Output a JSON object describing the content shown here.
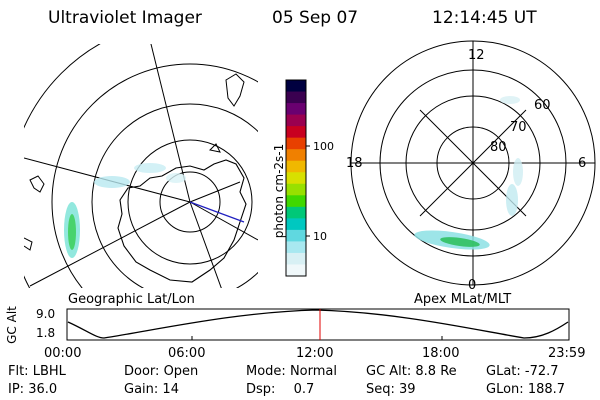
{
  "header": {
    "title": "Ultraviolet Imager",
    "date": "05 Sep 07",
    "time": "12:14:45 UT"
  },
  "geo_map": {
    "label": "Geographic Lat/Lon"
  },
  "apex_map": {
    "label": "Apex MLat/MLT",
    "mlt_labels": [
      "12",
      "18",
      "6",
      "0"
    ],
    "lat_labels": [
      "60",
      "70",
      "80"
    ]
  },
  "colorbar": {
    "unit_label": "photon cm-2s-1",
    "ticks": [
      "100",
      "10"
    ],
    "colors": [
      "#000040",
      "#3a0050",
      "#6a0070",
      "#9a0050",
      "#c80020",
      "#e84000",
      "#f08000",
      "#f0b800",
      "#d8e000",
      "#98e000",
      "#40d800",
      "#00c878",
      "#00c8c0",
      "#60d8e0",
      "#a8e8f0",
      "#d8f0f4",
      "#f0f8fa"
    ]
  },
  "altitude_panel": {
    "ylabel": "GC Alt",
    "ymax_label": "9.0",
    "ymin_label": "1.8",
    "xticks": [
      "00:00",
      "06:00",
      "12:00",
      "18:00",
      "23:59"
    ],
    "current_marker_color": "#e00000"
  },
  "info": {
    "flt_label": "Flt:",
    "flt_value": "LBHL",
    "ip_label": "IP:",
    "ip_value": "36.0",
    "door_label": "Door:",
    "door_value": "Open",
    "gain_label": "Gain:",
    "gain_value": "14",
    "mode_label": "Mode:",
    "mode_value": "Normal",
    "dsp_label": "Dsp:",
    "dsp_value": "0.7",
    "gcalt_label": "GC Alt:",
    "gcalt_value": "8.8 Re",
    "seq_label": "Seq:",
    "seq_value": "39",
    "glat_label": "GLat:",
    "glat_value": "-72.7",
    "glon_label": "GLon:",
    "glon_value": "188.7"
  }
}
